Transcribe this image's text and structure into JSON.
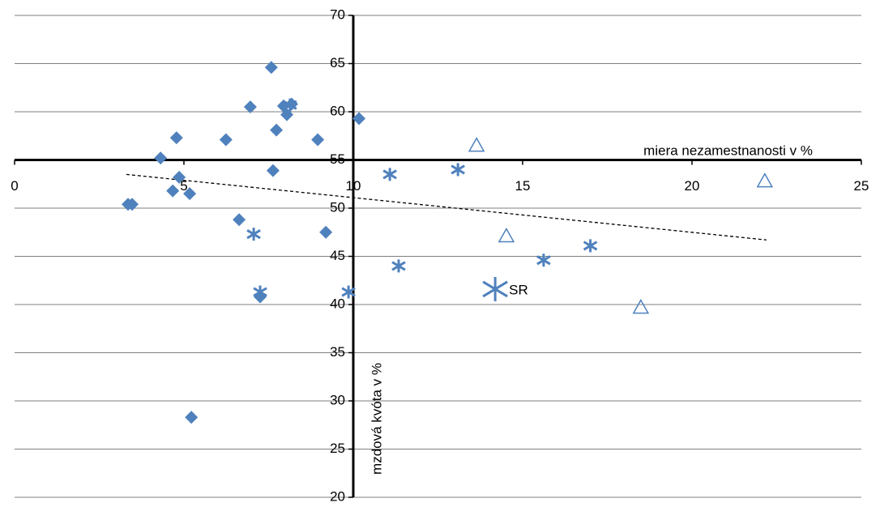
{
  "chart_data": {
    "type": "scatter",
    "x_label": "miera nezamestnanosti  v %",
    "y_label": "mzdová kvóta v %",
    "xlim": [
      0,
      25
    ],
    "xticks": [
      0,
      5,
      10,
      15,
      20,
      25
    ],
    "ylim": [
      20,
      70
    ],
    "yticks": [
      20,
      25,
      30,
      35,
      40,
      45,
      50,
      55,
      60,
      65,
      70
    ],
    "x_axis_crosses_at": 55,
    "y_axis_crosses_at": 10,
    "grid": true,
    "series": [
      {
        "marker": "diamond",
        "color": "#4f81bd",
        "x": [
          7.58,
          6.96,
          7.94,
          8.18,
          8.04,
          10.17,
          4.78,
          6.24,
          8.95,
          7.73,
          4.31,
          7.63,
          4.86,
          4.67,
          5.17,
          3.35,
          3.47,
          6.63,
          9.19,
          7.25,
          5.22
        ],
        "y": [
          64.6,
          60.5,
          60.6,
          60.8,
          59.7,
          59.3,
          57.3,
          57.1,
          57.1,
          58.1,
          55.2,
          53.9,
          53.2,
          51.8,
          51.5,
          50.4,
          50.4,
          48.8,
          47.5,
          40.8,
          28.3
        ]
      },
      {
        "marker": "star",
        "color": "#4f81bd",
        "x": [
          7.06,
          7.25,
          8.13,
          9.86,
          11.08,
          11.34,
          13.09,
          15.62,
          17.0
        ],
        "y": [
          47.3,
          41.3,
          60.7,
          41.3,
          53.5,
          44.0,
          54.0,
          44.6,
          46.1
        ]
      },
      {
        "marker": "big-star",
        "color": "#4f81bd",
        "x": [
          14.19
        ],
        "y": [
          41.6
        ],
        "point_labels": [
          "SR"
        ]
      },
      {
        "marker": "triangle",
        "color": "#4f81bd",
        "x": [
          13.64,
          14.52,
          18.49,
          22.15
        ],
        "y": [
          56.5,
          47.1,
          39.7,
          52.8
        ]
      }
    ],
    "trendline": {
      "x": [
        3.3,
        22.2
      ],
      "y": [
        53.5,
        46.7
      ],
      "color": "#000000"
    }
  }
}
